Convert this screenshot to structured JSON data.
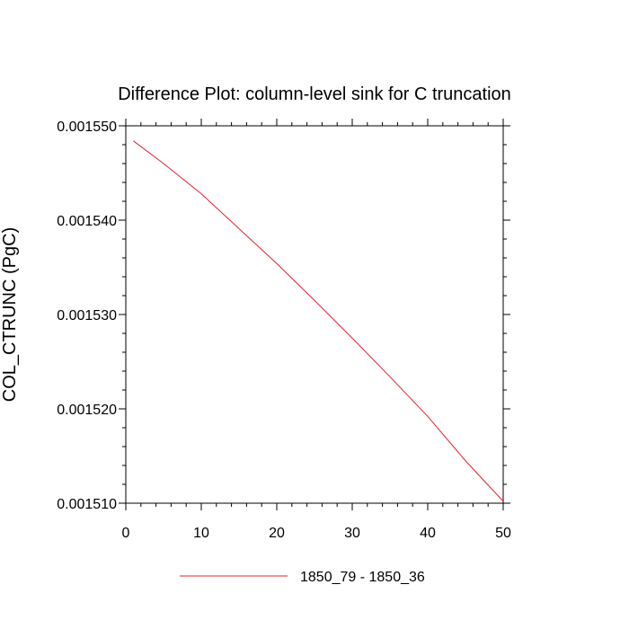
{
  "chart_data": {
    "type": "line",
    "title": "Difference Plot: column-level sink for C truncation",
    "xlabel": "",
    "ylabel": "COL_CTRUNC  (PgC)",
    "xlim": [
      0,
      50
    ],
    "ylim": [
      0.00151,
      0.00155
    ],
    "x_ticks": [
      0,
      10,
      20,
      30,
      40,
      50
    ],
    "x_tick_labels": [
      "0",
      "10",
      "20",
      "30",
      "40",
      "50"
    ],
    "y_ticks": [
      0.00151,
      0.00152,
      0.00153,
      0.00154,
      0.00155
    ],
    "y_tick_labels": [
      "0.001510",
      "0.001520",
      "0.001530",
      "0.001540",
      "0.001550"
    ],
    "grid": false,
    "legend_position": "bottom",
    "series": [
      {
        "name": "1850_79 - 1850_36",
        "color": "#e8202a",
        "x": [
          1,
          5,
          10,
          15,
          20,
          25,
          30,
          35,
          40,
          45,
          50
        ],
        "values": [
          0.0015484,
          0.001546,
          0.0015428,
          0.0015391,
          0.0015354,
          0.0015315,
          0.0015275,
          0.0015234,
          0.0015192,
          0.0015145,
          0.0015102
        ]
      }
    ]
  }
}
